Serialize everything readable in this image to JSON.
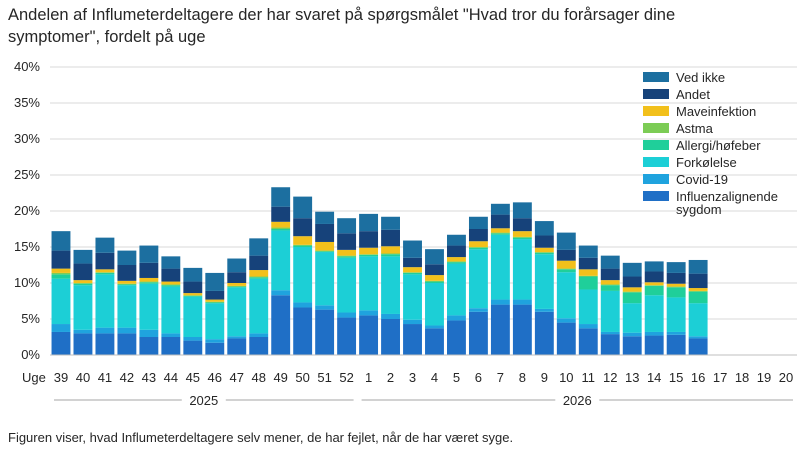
{
  "chart_data": {
    "type": "bar",
    "stacked": true,
    "title": "Andelen af Influmeterdeltagere der har svaret på spørgsmålet \"Hvad tror du forårsager dine symptomer\", fordelt på uge",
    "xlabel": "Uge",
    "ylabel": "",
    "ylim": [
      0,
      40
    ],
    "y_ticks": [
      "0%",
      "5%",
      "10%",
      "15%",
      "20%",
      "25%",
      "30%",
      "35%",
      "40%"
    ],
    "grid": true,
    "legend_position": "top-right",
    "categories": [
      "39",
      "40",
      "41",
      "42",
      "43",
      "44",
      "45",
      "46",
      "47",
      "48",
      "49",
      "50",
      "51",
      "52",
      "1",
      "2",
      "3",
      "4",
      "5",
      "6",
      "7",
      "8",
      "9",
      "10",
      "11",
      "12",
      "13",
      "14",
      "15",
      "16",
      "17",
      "18",
      "19",
      "20"
    ],
    "year_labels": [
      {
        "label": "2025",
        "from": "39",
        "to": "52"
      },
      {
        "label": "2026",
        "from": "1",
        "to": "20"
      }
    ],
    "series": [
      {
        "name": "Influenzalignende sygdom",
        "color": "#1f6fc6",
        "values": [
          3.2,
          3.0,
          3.0,
          3.0,
          2.5,
          2.5,
          2.0,
          1.7,
          2.3,
          2.5,
          8.3,
          6.6,
          6.3,
          5.2,
          5.5,
          5.0,
          4.3,
          3.7,
          4.8,
          6.0,
          7.0,
          7.0,
          6.0,
          4.5,
          3.7,
          2.9,
          2.6,
          2.7,
          2.8,
          2.3,
          null,
          null,
          null,
          null
        ]
      },
      {
        "name": "Covid-19",
        "color": "#1fa3de",
        "values": [
          1.1,
          0.5,
          0.8,
          0.8,
          1.0,
          0.5,
          0.5,
          0.5,
          0.3,
          0.5,
          0.7,
          0.7,
          0.6,
          0.7,
          0.7,
          0.7,
          0.6,
          0.4,
          0.7,
          0.5,
          0.7,
          0.7,
          0.4,
          0.6,
          0.6,
          0.3,
          0.5,
          0.5,
          0.4,
          0.3,
          null,
          null,
          null,
          null
        ]
      },
      {
        "name": "Forkølelse",
        "color": "#1ccfd6",
        "values": [
          6.3,
          6.2,
          7.4,
          5.9,
          6.4,
          6.5,
          5.6,
          5.0,
          6.8,
          7.6,
          8.3,
          7.7,
          7.4,
          7.6,
          7.5,
          8.0,
          6.3,
          5.9,
          7.2,
          8.2,
          9.0,
          8.4,
          7.6,
          6.4,
          4.8,
          5.7,
          4.1,
          5.1,
          4.8,
          4.6,
          null,
          null,
          null,
          null
        ]
      },
      {
        "name": "Allergi/høfeber",
        "color": "#1fcf9a",
        "values": [
          0.6,
          0.2,
          0.2,
          0.1,
          0.2,
          0.2,
          0.1,
          0.1,
          0.1,
          0.2,
          0.2,
          0.2,
          0.1,
          0.2,
          0.2,
          0.3,
          0.2,
          0.2,
          0.2,
          0.2,
          0.2,
          0.2,
          0.2,
          0.4,
          1.8,
          0.8,
          1.5,
          1.3,
          1.4,
          1.6,
          null,
          null,
          null,
          null
        ]
      },
      {
        "name": "Astma",
        "color": "#7ccc55",
        "values": [
          0.2,
          0.1,
          0.1,
          0.1,
          0.1,
          0.1,
          0.1,
          0.1,
          0.1,
          0.1,
          0.2,
          0.1,
          0.1,
          0.1,
          0.1,
          0.1,
          0.1,
          0.1,
          0.1,
          0.1,
          0.1,
          0.1,
          0.1,
          0.1,
          0.1,
          0.1,
          0.1,
          0.1,
          0.1,
          0.1,
          null,
          null,
          null,
          null
        ]
      },
      {
        "name": "Maveinfektion",
        "color": "#f2c01b",
        "values": [
          0.6,
          0.4,
          0.4,
          0.4,
          0.5,
          0.4,
          0.3,
          0.3,
          0.4,
          0.9,
          0.8,
          1.2,
          1.2,
          0.8,
          0.9,
          1.0,
          0.7,
          0.8,
          0.6,
          0.8,
          0.6,
          0.8,
          0.6,
          1.1,
          0.9,
          0.6,
          0.6,
          0.4,
          0.4,
          0.4,
          null,
          null,
          null,
          null
        ]
      },
      {
        "name": "Andet",
        "color": "#16427a",
        "values": [
          2.5,
          2.3,
          2.3,
          2.2,
          2.1,
          1.8,
          1.6,
          1.2,
          1.5,
          2.0,
          2.1,
          2.5,
          2.5,
          2.3,
          2.3,
          2.3,
          1.3,
          1.5,
          1.6,
          1.7,
          1.9,
          1.8,
          1.7,
          1.5,
          1.6,
          1.6,
          1.5,
          1.5,
          1.5,
          2.0,
          null,
          null,
          null,
          null
        ]
      },
      {
        "name": "Ved ikke",
        "color": "#1c6fa0",
        "values": [
          2.7,
          1.9,
          2.1,
          2.0,
          2.4,
          1.7,
          1.9,
          2.5,
          1.9,
          2.4,
          2.7,
          3.0,
          1.7,
          2.1,
          2.4,
          1.8,
          2.4,
          2.1,
          1.5,
          1.7,
          1.5,
          2.2,
          2.0,
          2.4,
          1.7,
          1.8,
          1.9,
          1.4,
          1.5,
          1.9,
          null,
          null,
          null,
          null
        ]
      }
    ]
  },
  "footnote": "Figuren viser, hvad Influmeterdeltagere selv mener, de har fejlet, når de har været syge."
}
